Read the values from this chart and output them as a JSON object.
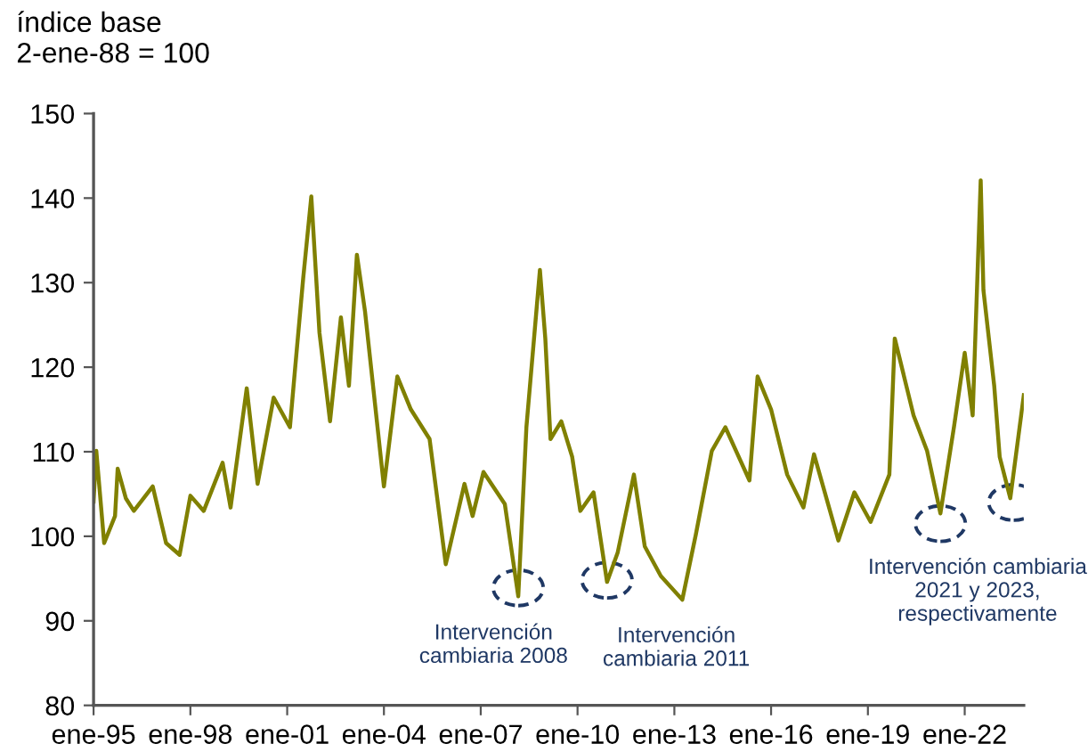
{
  "chart_data": {
    "type": "line",
    "ylabel": "índice base\n2-ene-88 = 100",
    "x": [
      "1995-01",
      "1995-02",
      "1995-05",
      "1995-09",
      "1995-10",
      "1996-01",
      "1996-04",
      "1996-11",
      "1997-04",
      "1997-09",
      "1998-01",
      "1998-06",
      "1999-01",
      "1999-04",
      "1999-10",
      "2000-02",
      "2000-08",
      "2001-02",
      "2001-04",
      "2001-07",
      "2001-10",
      "2002-01",
      "2002-05",
      "2002-09",
      "2002-12",
      "2003-03",
      "2003-06",
      "2004-01",
      "2004-06",
      "2004-11",
      "2005-06",
      "2005-12",
      "2006-07",
      "2006-10",
      "2007-02",
      "2007-10",
      "2008-03",
      "2008-06",
      "2008-11",
      "2009-01",
      "2009-03",
      "2009-07",
      "2009-11",
      "2010-02",
      "2010-07",
      "2010-12",
      "2011-04",
      "2011-10",
      "2012-02",
      "2012-08",
      "2013-04",
      "2013-09",
      "2014-03",
      "2014-08",
      "2015-05",
      "2015-08",
      "2016-01",
      "2016-07",
      "2017-01",
      "2017-05",
      "2018-02",
      "2018-08",
      "2019-02",
      "2019-09",
      "2019-11",
      "2020-06",
      "2020-11",
      "2021-04",
      "2021-09",
      "2022-01",
      "2022-04",
      "2022-07",
      "2022-08",
      "2022-12",
      "2023-02",
      "2023-06",
      "2023-11"
    ],
    "series": [
      {
        "color": "#808000",
        "values": [
          104.1,
          110.1,
          99.2,
          102.4,
          108.0,
          104.5,
          103.0,
          105.9,
          99.2,
          97.8,
          104.8,
          103.0,
          108.7,
          103.4,
          117.5,
          106.2,
          116.4,
          112.9,
          119.9,
          130.5,
          140.2,
          124.1,
          113.6,
          125.9,
          117.8,
          133.3,
          126.6,
          105.9,
          118.9,
          115.0,
          111.5,
          96.7,
          106.2,
          102.4,
          107.6,
          103.8,
          92.9,
          112.9,
          131.5,
          123.4,
          111.5,
          113.6,
          109.4,
          103.0,
          105.2,
          94.6,
          98.1,
          107.3,
          98.8,
          95.3,
          92.5,
          100.2,
          110.1,
          112.9,
          106.6,
          118.9,
          115.0,
          107.3,
          103.4,
          109.7,
          99.5,
          105.2,
          101.7,
          107.3,
          123.4,
          114.3,
          110.1,
          102.7,
          112.9,
          121.7,
          114.3,
          142.1,
          129.1,
          117.8,
          109.4,
          104.5,
          116.7
        ]
      }
    ],
    "xlim": [
      "1995-01",
      "2023-11"
    ],
    "xticks": [
      {
        "value": "1995-01",
        "label": "ene-95"
      },
      {
        "value": "1998-01",
        "label": "ene-98"
      },
      {
        "value": "2001-01",
        "label": "ene-01"
      },
      {
        "value": "2004-01",
        "label": "ene-04"
      },
      {
        "value": "2007-01",
        "label": "ene-07"
      },
      {
        "value": "2010-01",
        "label": "ene-10"
      },
      {
        "value": "2013-01",
        "label": "ene-13"
      },
      {
        "value": "2016-01",
        "label": "ene-16"
      },
      {
        "value": "2019-01",
        "label": "ene-19"
      },
      {
        "value": "2022-01",
        "label": "ene-22"
      }
    ],
    "ylim": [
      80,
      150
    ],
    "yticks": [
      80,
      90,
      100,
      110,
      120,
      130,
      140,
      150
    ],
    "grid": false,
    "legend": false,
    "marker": "none",
    "line_style": "solid",
    "annotations": [
      {
        "text": "Intervención\ncambiaria 2008",
        "x": "2008-03",
        "y": 92.9
      },
      {
        "text": "Intervención\ncambiaria 2011",
        "x": "2010-12",
        "y": 94.6
      },
      {
        "text": "Intervención cambiaria\n2021 y 2023,\nrespectivamente",
        "x": "2021-04",
        "y": 102.7
      }
    ]
  }
}
